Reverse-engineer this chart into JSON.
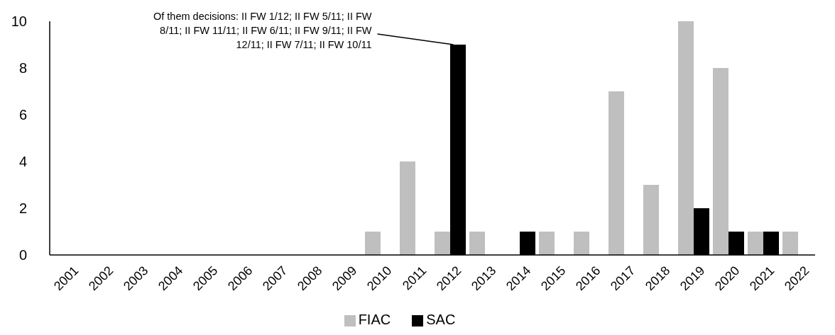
{
  "chart_data": {
    "type": "bar",
    "categories": [
      "2001",
      "2002",
      "2003",
      "2004",
      "2005",
      "2006",
      "2007",
      "2008",
      "2009",
      "2010",
      "2011",
      "2012",
      "2013",
      "2014",
      "2015",
      "2016",
      "2017",
      "2018",
      "2019",
      "2020",
      "2021",
      "2022"
    ],
    "series": [
      {
        "name": "FIAC",
        "color": "#bfbfbf",
        "values": [
          0,
          0,
          0,
          0,
          0,
          0,
          0,
          0,
          0,
          1,
          4,
          1,
          1,
          0,
          1,
          1,
          7,
          3,
          10,
          8,
          1,
          1
        ]
      },
      {
        "name": "SAC",
        "color": "#000000",
        "values": [
          0,
          0,
          0,
          0,
          0,
          0,
          0,
          0,
          0,
          0,
          0,
          9,
          0,
          1,
          0,
          0,
          0,
          0,
          2,
          1,
          1,
          0
        ]
      }
    ],
    "ylim": [
      0,
      10
    ],
    "yticks": [
      0,
      2,
      4,
      6,
      8,
      10
    ],
    "grid": false,
    "legend": "bottom",
    "annotations": [
      {
        "text": "Of them decisions: II FW 1/12; II FW 5/11; II FW 8/11; II FW 11/11; II FW 6/11; II FW 9/11; II FW 12/11; II FW 7/11; II FW 10/11",
        "x": "2012",
        "y": 9
      }
    ]
  }
}
